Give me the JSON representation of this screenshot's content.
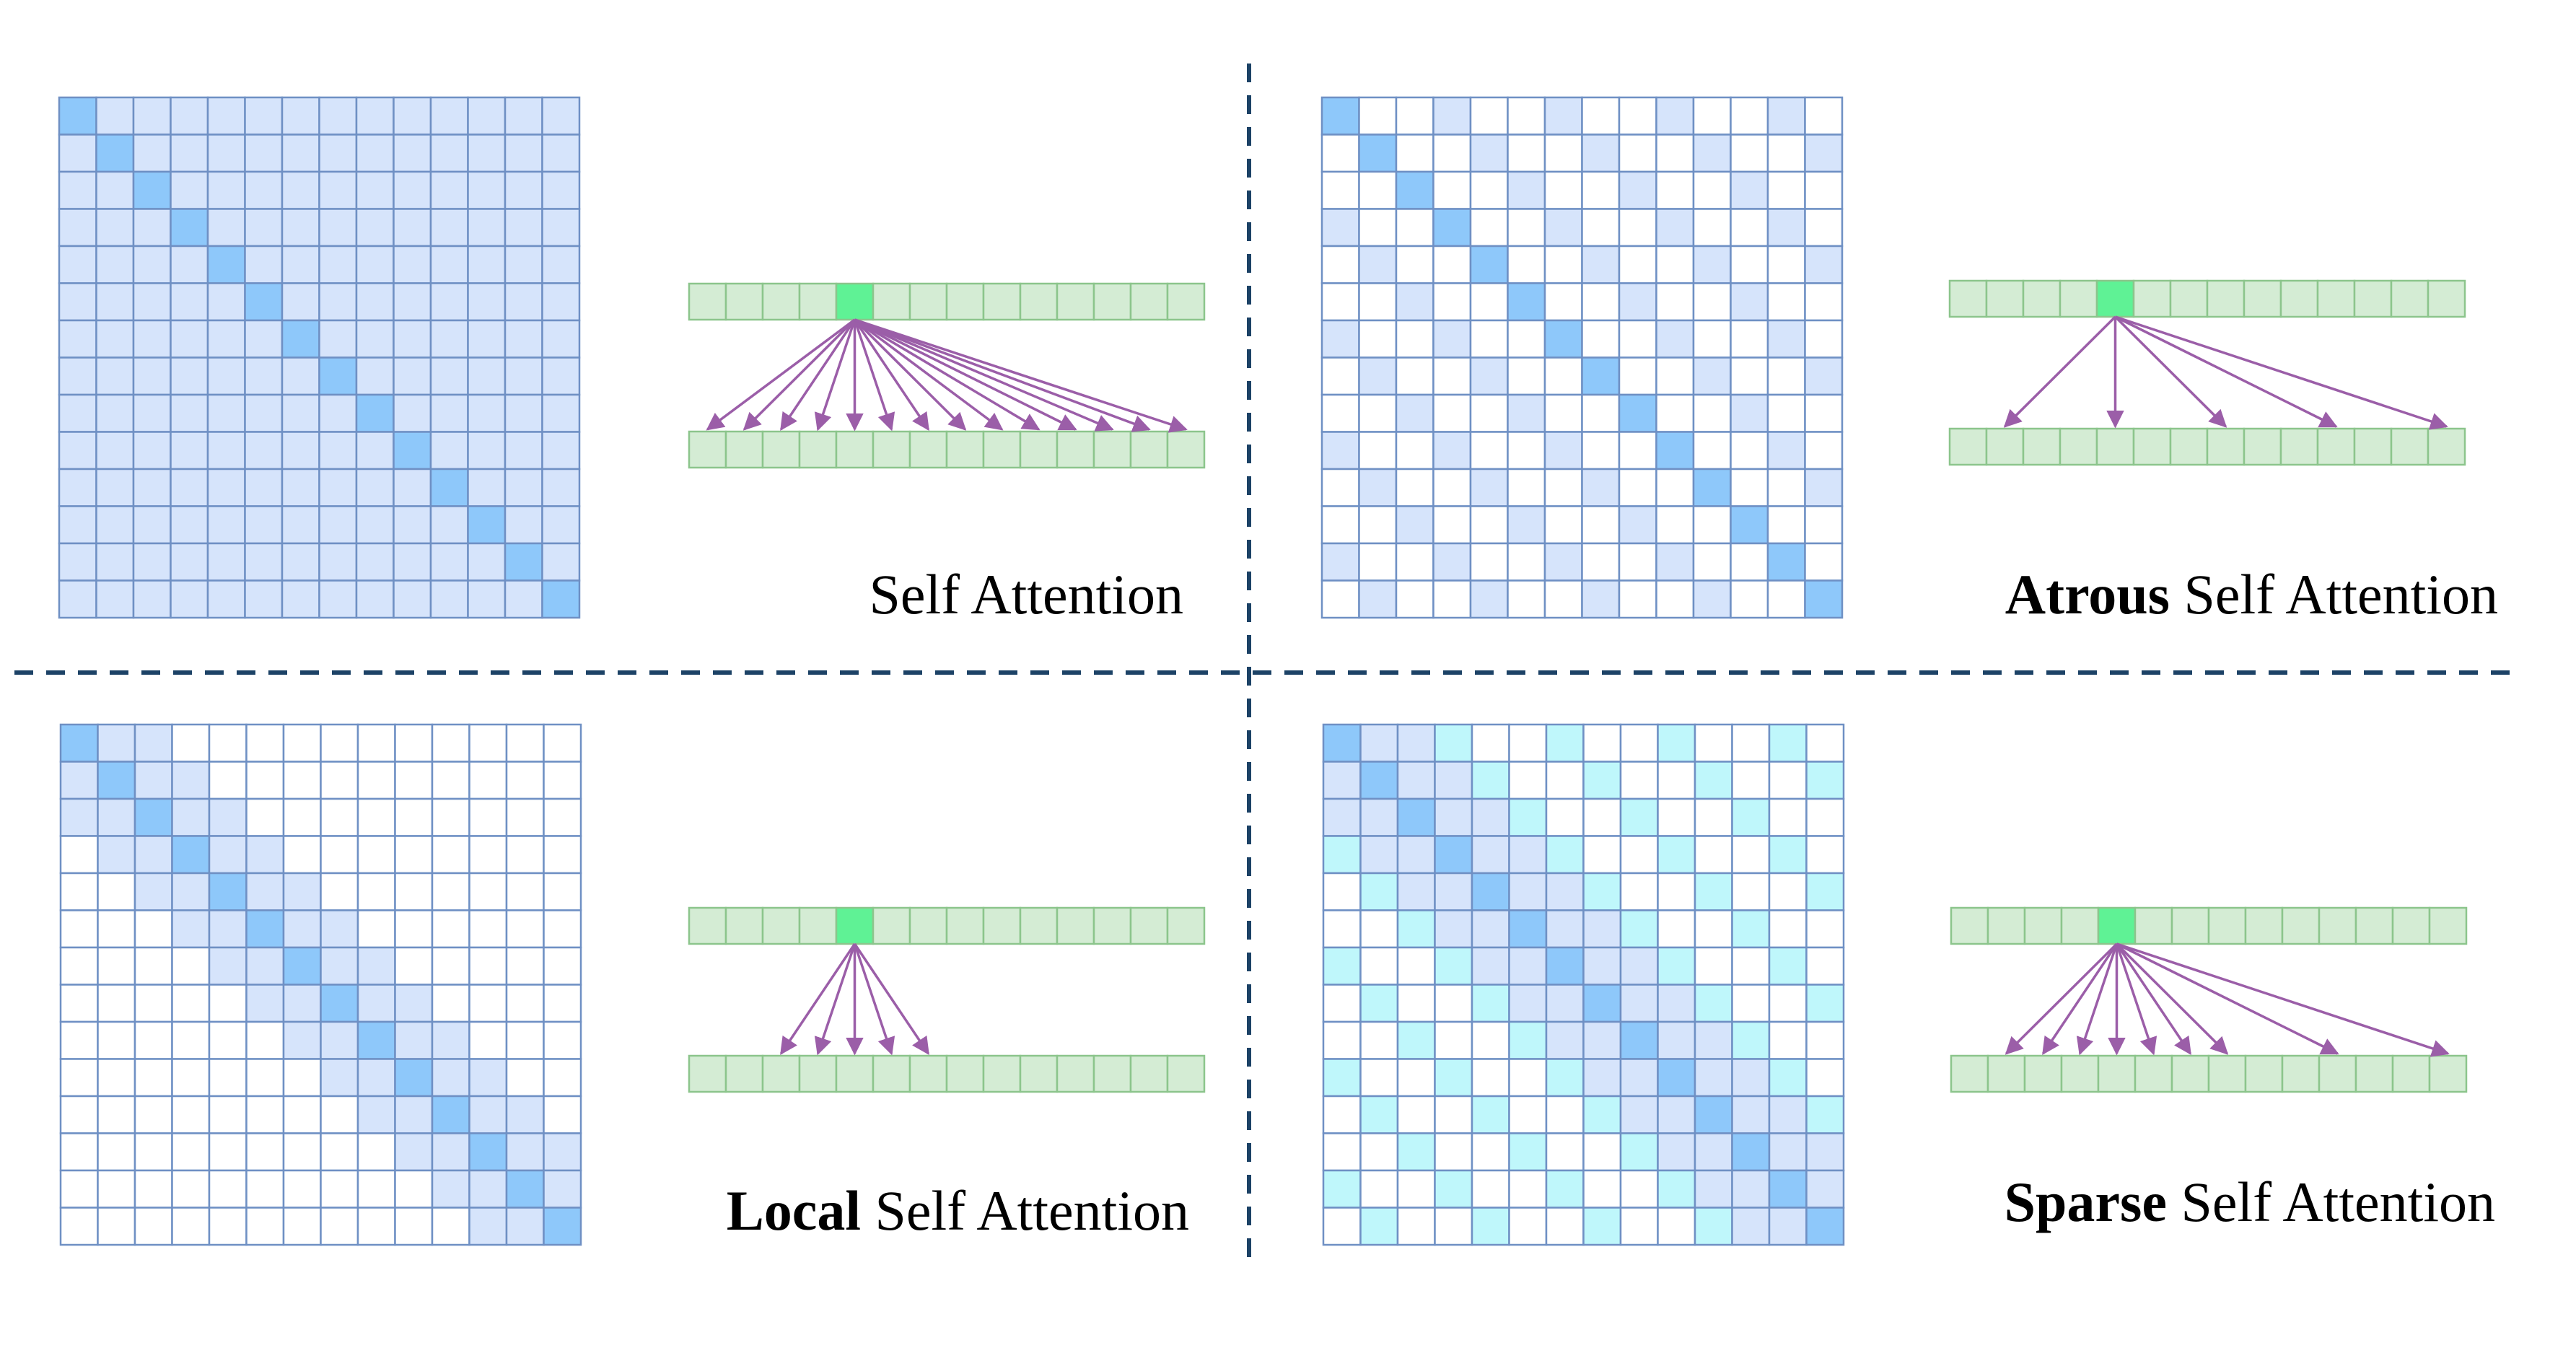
{
  "colors": {
    "matrix_diagonal": "#8ec8fa",
    "matrix_attended": "#d6e4fb",
    "matrix_sparse_extra": "#bff7fb",
    "matrix_empty": "#ffffff",
    "matrix_grid": "#6f90c4",
    "token_fill": "#d4ecd4",
    "token_border": "#8cc58c",
    "token_query": "#5ff295",
    "arrow": "#9b5ea8",
    "divider": "#1c4266"
  },
  "panels": [
    {
      "id": "self",
      "caption_bold": "",
      "caption_rest": "Self Attention",
      "pattern": "full",
      "arrow_targets": [
        0,
        1,
        2,
        3,
        4,
        5,
        6,
        7,
        8,
        9,
        10,
        11,
        12,
        13
      ]
    },
    {
      "id": "atrous",
      "caption_bold": "Atrous",
      "caption_rest": " Self Attention",
      "pattern": "atrous",
      "arrow_targets": [
        1,
        4,
        7,
        10,
        13
      ]
    },
    {
      "id": "local",
      "caption_bold": "Local",
      "caption_rest": " Self Attention",
      "pattern": "local",
      "arrow_targets": [
        2,
        3,
        4,
        5,
        6
      ]
    },
    {
      "id": "sparse",
      "caption_bold": "Sparse",
      "caption_rest": " Self Attention",
      "pattern": "sparse",
      "arrow_targets": [
        1,
        2,
        3,
        4,
        5,
        6,
        7,
        10,
        13
      ]
    }
  ]
}
